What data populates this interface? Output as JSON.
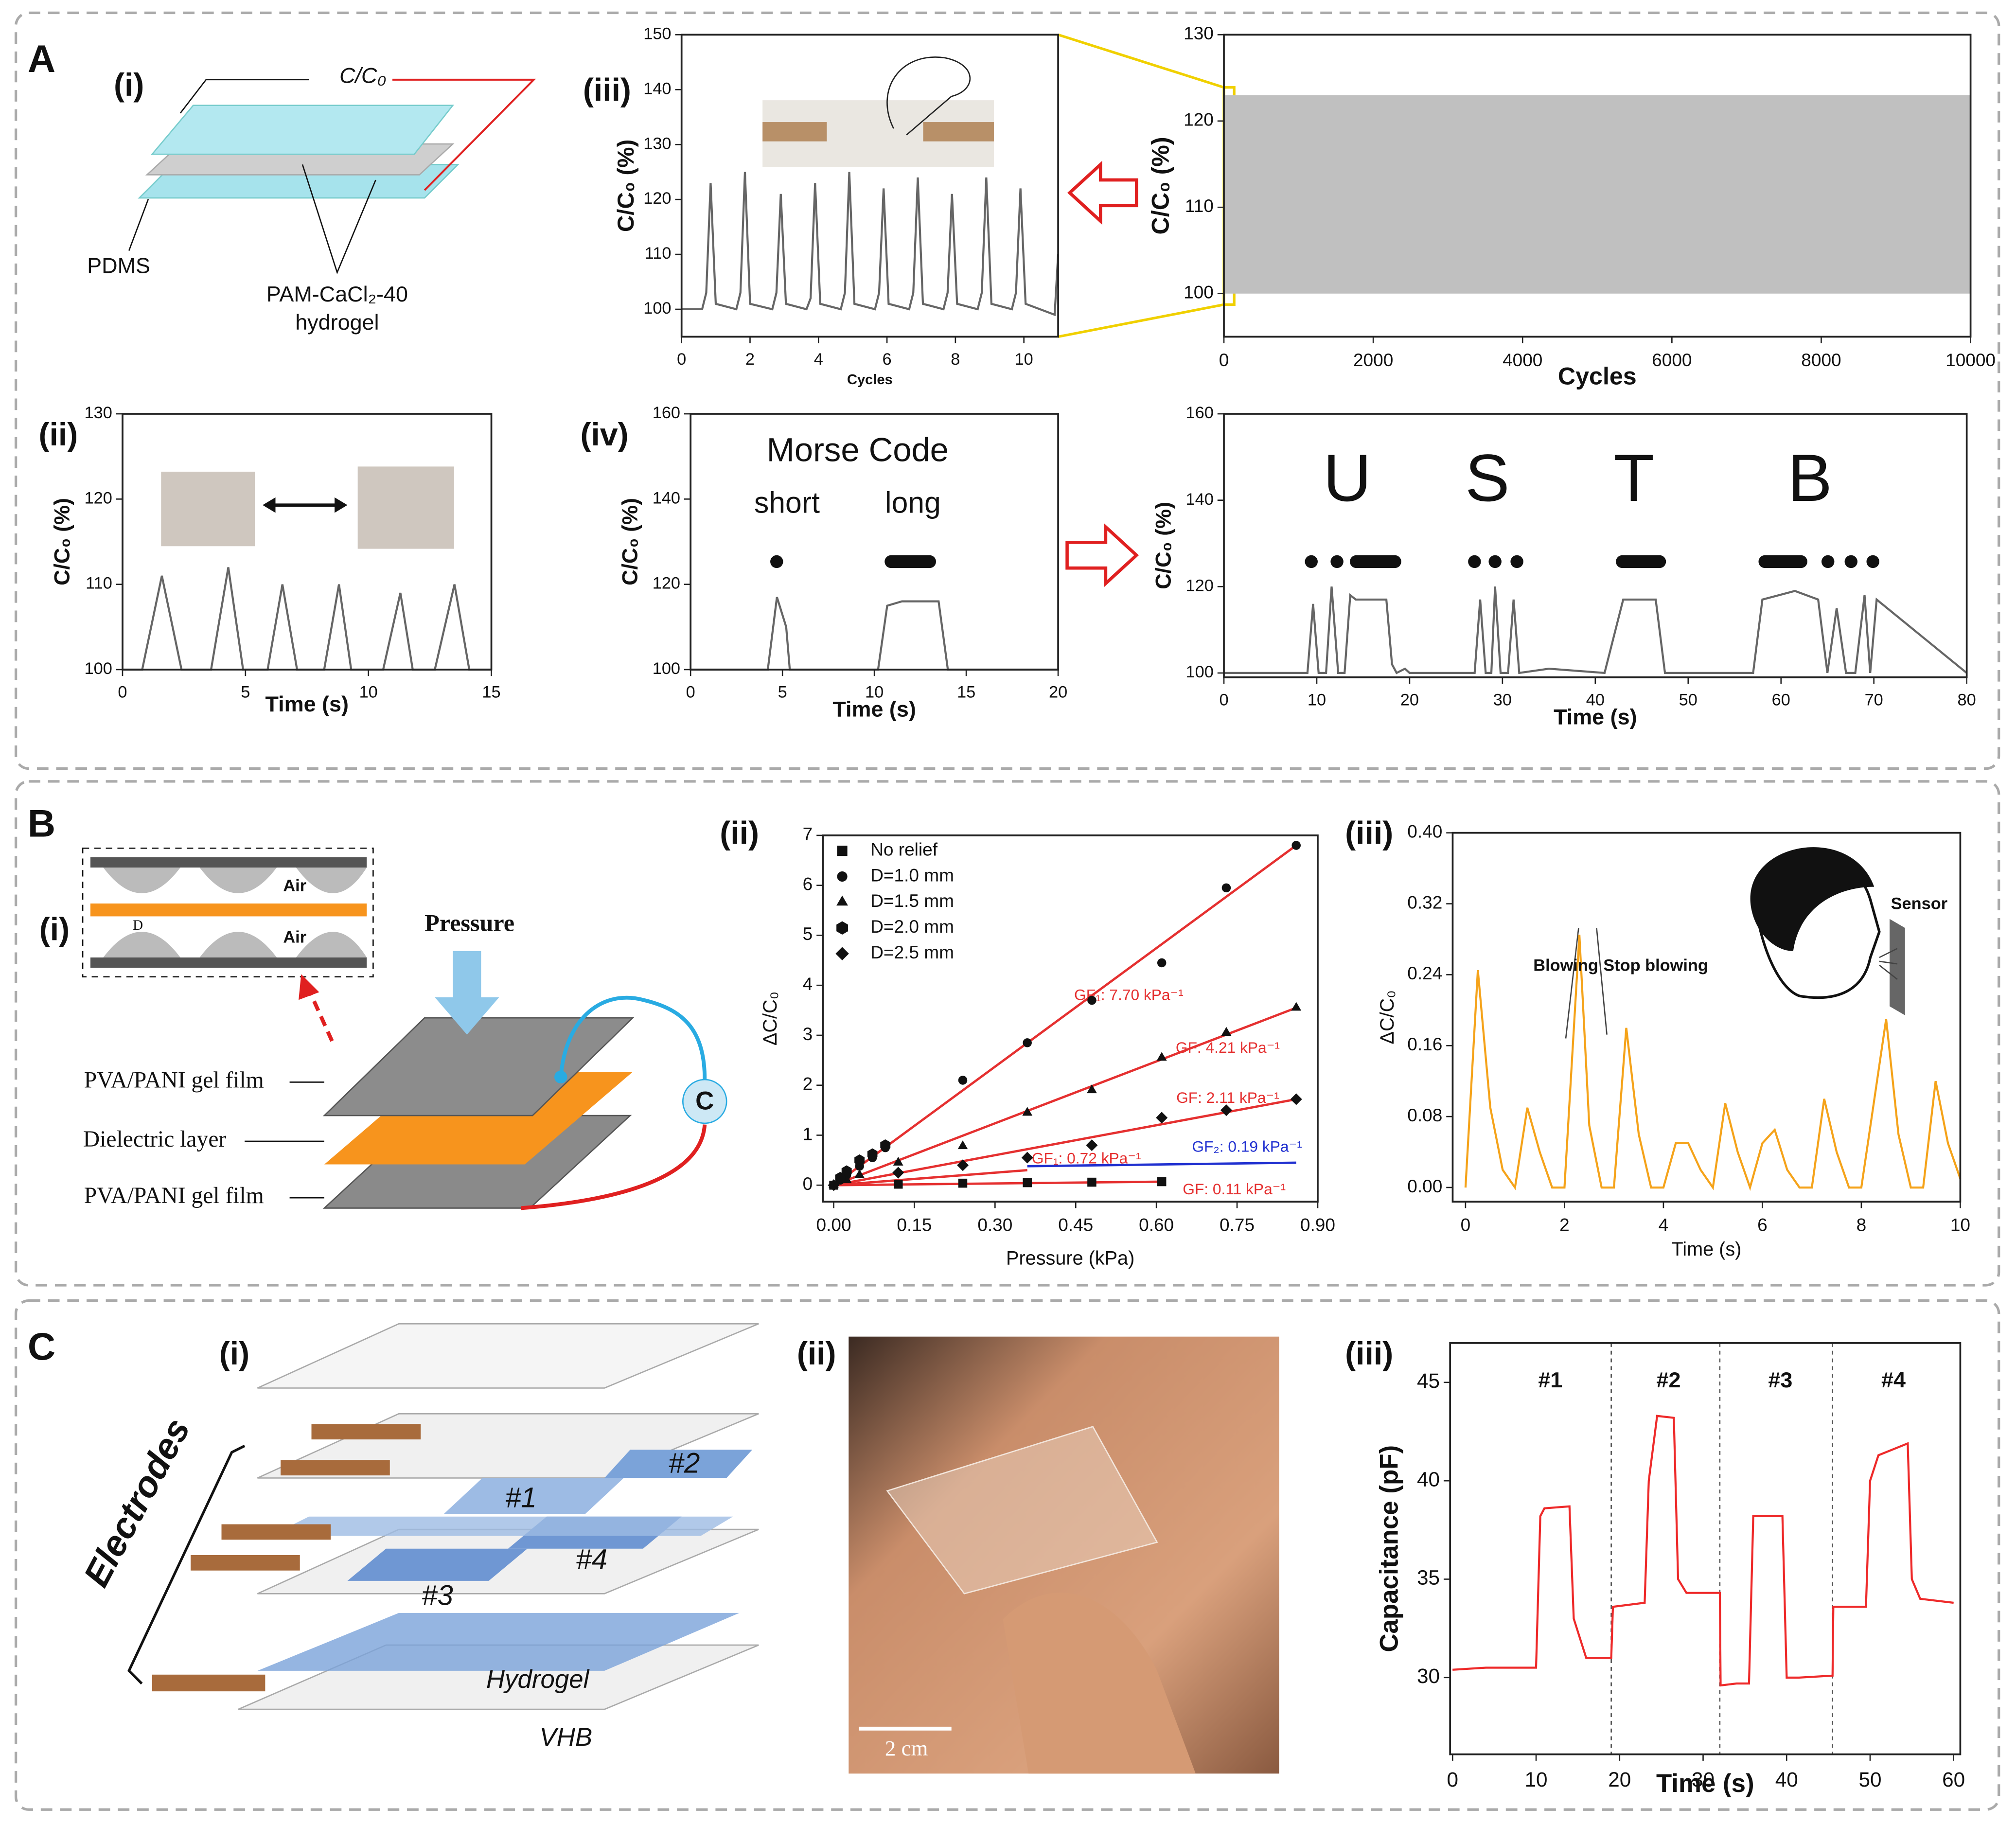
{
  "panel_labels": [
    "A",
    "(i)",
    "(iii)",
    "(ii)",
    "(iv)",
    "B",
    "(i)",
    "(ii)",
    "(iii)",
    "C",
    "(i)",
    "(ii)",
    "(iii)"
  ],
  "a_i": [
    "C/C₀",
    "PDMS",
    "PAM-CaCl₂-40",
    "hydrogel"
  ],
  "a_iv_morse": [
    "Morse Code",
    "short",
    "long"
  ],
  "b_i": [
    "Pressure",
    "Air",
    "Air",
    "D",
    "PVA/PANI gel film",
    "Dielectric layer",
    "PVA/PANI gel film",
    "C"
  ],
  "c_i": [
    "Electrodes",
    "#1",
    "#2",
    "#3",
    "#4",
    "Hydrogel",
    "VHB"
  ],
  "c_ii": [
    "2 cm"
  ],
  "chart_data": [
    {
      "type": "line",
      "xlabel": "Cycles",
      "ylabel": "C/C₀ (%)",
      "xlim": [
        0,
        11
      ],
      "ylim": [
        95,
        150
      ],
      "xticks": [
        0,
        2,
        4,
        6,
        8,
        10
      ],
      "yticks": [
        100,
        110,
        120,
        130,
        140,
        150
      ],
      "series": [
        {
          "color": "#666666",
          "x": [
            0,
            0.6,
            0.72,
            0.85,
            1.0,
            1.6,
            1.72,
            1.85,
            2.0,
            2.65,
            2.77,
            2.9,
            3.05,
            3.65,
            3.77,
            3.9,
            4.05,
            4.65,
            4.77,
            4.9,
            5.05,
            5.65,
            5.77,
            5.9,
            6.05,
            6.65,
            6.77,
            6.9,
            7.05,
            7.65,
            7.77,
            7.9,
            8.05,
            8.65,
            8.77,
            8.9,
            9.05,
            9.65,
            9.77,
            9.9,
            10.05,
            10.9,
            11
          ],
          "values": [
            100,
            100,
            103,
            123,
            101,
            100,
            103,
            125,
            101,
            100,
            103,
            121,
            101,
            100,
            102,
            123,
            101,
            100,
            103,
            125,
            101,
            100,
            103,
            122,
            101,
            100,
            103,
            124,
            101,
            100,
            103,
            121,
            101,
            100,
            103,
            124,
            101,
            100,
            103,
            122,
            101,
            99,
            110
          ]
        }
      ]
    },
    {
      "type": "band",
      "xlabel": "Cycles",
      "ylabel": "C/C₀ (%)",
      "xlim": [
        0,
        10000
      ],
      "ylim": [
        95,
        130
      ],
      "xticks": [
        0,
        2000,
        4000,
        6000,
        8000,
        10000
      ],
      "yticks": [
        100,
        110,
        120,
        130
      ],
      "color": "#c0c0c0",
      "x": [
        0,
        10000
      ],
      "values": [
        123,
        123
      ],
      "lower": [
        100,
        100
      ]
    },
    {
      "type": "line",
      "xlabel": "Time (s)",
      "ylabel": "C/C₀ (%)",
      "xlim": [
        0,
        15
      ],
      "ylim": [
        100,
        130
      ],
      "xticks": [
        0,
        5,
        10,
        15
      ],
      "yticks": [
        100,
        110,
        120,
        130
      ],
      "series": [
        {
          "color": "#666666",
          "x": [
            0,
            0.8,
            1.6,
            2.4,
            3.2,
            3.6,
            4.3,
            4.9,
            5.6,
            5.9,
            6.5,
            7.1,
            8.2,
            8.8,
            9.3,
            10.6,
            11.3,
            11.8,
            12.7,
            13.5,
            14.1,
            15
          ],
          "values": [
            100,
            100,
            111,
            100,
            100,
            100,
            112,
            100,
            100,
            100,
            110,
            100,
            100,
            110,
            100,
            100,
            109,
            100,
            100,
            110,
            100,
            100
          ]
        }
      ]
    },
    {
      "type": "line",
      "xlabel": "Time (s)",
      "ylabel": "C/C₀ (%)",
      "xlim": [
        0,
        20
      ],
      "ylim": [
        100,
        160
      ],
      "xticks": [
        0,
        5,
        10,
        15,
        20
      ],
      "yticks": [
        100,
        120,
        140,
        160
      ],
      "series": [
        {
          "color": "#666666",
          "x": [
            0,
            4.2,
            4.7,
            5.2,
            5.4,
            10.2,
            10.7,
            11.5,
            13.5,
            14.0,
            20
          ],
          "values": [
            100,
            100,
            117,
            110,
            100,
            100,
            115,
            116,
            116,
            100,
            100
          ]
        }
      ]
    },
    {
      "type": "line",
      "xlabel": "Time (s)",
      "ylabel": "C/C₀ (%)",
      "xlim": [
        0,
        80
      ],
      "ylim": [
        99,
        160
      ],
      "xticks": [
        0,
        10,
        20,
        30,
        40,
        50,
        60,
        70,
        80
      ],
      "yticks": [
        100,
        120,
        140,
        160
      ],
      "annotations": [
        "U",
        "S",
        "T",
        "B"
      ],
      "series": [
        {
          "color": "#666666",
          "x": [
            0,
            9,
            9.6,
            10.2,
            11,
            11.6,
            12.3,
            13,
            13.6,
            14.2,
            17.5,
            18.1,
            18.6,
            19.5,
            20,
            27,
            27.6,
            28.2,
            28.8,
            29.2,
            29.8,
            30.6,
            31.2,
            31.8,
            35,
            41,
            43,
            46.5,
            47.5,
            57,
            58,
            61.5,
            64,
            65,
            66,
            67,
            68,
            69,
            69.6,
            70.3,
            80
          ],
          "values": [
            100,
            100,
            116,
            100,
            100,
            120,
            100,
            100,
            118,
            117,
            117,
            102,
            100,
            101,
            100,
            100,
            117,
            100,
            100,
            120,
            100,
            100,
            117,
            100,
            101,
            100,
            117,
            117,
            100,
            100,
            117,
            119,
            117,
            100,
            115,
            100,
            100,
            118,
            100,
            117,
            100
          ]
        }
      ]
    },
    {
      "type": "scatter",
      "xlabel": "Pressure (kPa)",
      "ylabel": "ΔC/C₀",
      "xlim": [
        -0.02,
        0.9
      ],
      "ylim": [
        -0.33,
        7
      ],
      "xticks": [
        {
          "value": 0,
          "label": "0.00"
        },
        0.15,
        {
          "value": 0.3,
          "label": "0.30"
        },
        0.45,
        {
          "value": 0.6,
          "label": "0.60"
        },
        0.75,
        {
          "value": 0.9,
          "label": "0.90"
        }
      ],
      "yticks": [
        0,
        1,
        2,
        3,
        4,
        5,
        6,
        7
      ],
      "legend": "upper left",
      "series": [
        {
          "name": "No relief",
          "marker": "square",
          "color": "#111111",
          "x": [
            0,
            0.12,
            0.24,
            0.36,
            0.48,
            0.61
          ],
          "values": [
            0,
            0.02,
            0.04,
            0.05,
            0.06,
            0.07
          ]
        },
        {
          "name": "D=1.0 mm",
          "marker": "circle",
          "color": "#111111",
          "x": [
            0,
            0.012,
            0.024,
            0.048,
            0.072,
            0.096,
            0.24,
            0.36,
            0.48,
            0.61,
            0.73,
            0.86
          ],
          "values": [
            0,
            0.1,
            0.2,
            0.38,
            0.55,
            0.75,
            2.1,
            2.85,
            3.7,
            4.45,
            5.95,
            6.8
          ]
        },
        {
          "name": "D=1.5 mm",
          "marker": "triangle",
          "color": "#111111",
          "x": [
            0,
            0.024,
            0.048,
            0.12,
            0.24,
            0.36,
            0.48,
            0.61,
            0.73,
            0.86
          ],
          "values": [
            0,
            0.1,
            0.2,
            0.45,
            0.78,
            1.45,
            1.9,
            2.55,
            3.05,
            3.55
          ]
        },
        {
          "name": "D=2.0 mm",
          "marker": "hexagon",
          "color": "#111111",
          "x": [
            0.012,
            0.024,
            0.048,
            0.072,
            0.096
          ],
          "values": [
            0.15,
            0.28,
            0.5,
            0.62,
            0.8
          ]
        },
        {
          "name": "D=2.5 mm",
          "marker": "diamond",
          "color": "#111111",
          "x": [
            0,
            0.12,
            0.24,
            0.36,
            0.48,
            0.61,
            0.73,
            0.86
          ],
          "values": [
            0,
            0.25,
            0.4,
            0.55,
            0.8,
            1.35,
            1.5,
            1.72
          ]
        }
      ],
      "fits": [
        {
          "x": [
            0,
            0.86
          ],
          "values": [
            0,
            6.8
          ],
          "color": "#e53030",
          "label": "GF₁: 7.70 kPa⁻¹"
        },
        {
          "x": [
            0,
            0.86
          ],
          "values": [
            0,
            3.55
          ],
          "color": "#e53030",
          "label": "GF: 4.21 kPa⁻¹"
        },
        {
          "x": [
            0,
            0.86
          ],
          "values": [
            0,
            1.72
          ],
          "color": "#e53030",
          "label": "GF: 2.11 kPa⁻¹"
        },
        {
          "x": [
            0,
            0.36
          ],
          "values": [
            0,
            0.3
          ],
          "color": "#e53030",
          "label": "GF₁: 0.72 kPa⁻¹"
        },
        {
          "x": [
            0.36,
            0.86
          ],
          "values": [
            0.38,
            0.45
          ],
          "color": "#2030d0",
          "label": "GF₂: 0.19 kPa⁻¹"
        },
        {
          "x": [
            0,
            0.61
          ],
          "values": [
            0,
            0.07
          ],
          "color": "#e53030",
          "label": "GF: 0.11 kPa⁻¹"
        }
      ]
    },
    {
      "type": "line",
      "xlabel": "Time (s)",
      "ylabel": "ΔC/C₀",
      "xlim": [
        -0.26,
        10
      ],
      "ylim": [
        -0.016,
        0.4
      ],
      "xticks": [
        0,
        2,
        4,
        6,
        8,
        10
      ],
      "yticks": [
        {
          "value": 0,
          "label": "0.00"
        },
        0.08,
        0.16,
        0.24,
        0.32,
        {
          "value": 0.4,
          "label": "0.40"
        }
      ],
      "annotations": [
        "Blowing",
        "Stop blowing",
        "Sensor"
      ],
      "series": [
        {
          "color": "#f5a31a",
          "x": [
            0,
            0.25,
            0.5,
            0.75,
            1,
            1.25,
            1.5,
            1.75,
            2,
            2.3,
            2.5,
            2.75,
            3,
            3.25,
            3.5,
            3.75,
            4,
            4.25,
            4.5,
            4.75,
            5,
            5.25,
            5.5,
            5.75,
            6,
            6.25,
            6.5,
            6.75,
            7,
            7.25,
            7.5,
            7.75,
            8,
            8.5,
            8.75,
            9,
            9.25,
            9.5,
            9.75,
            10
          ],
          "values": [
            0,
            0.245,
            0.09,
            0.02,
            0,
            0.09,
            0.04,
            0,
            0,
            0.285,
            0.07,
            0,
            0,
            0.18,
            0.06,
            0,
            0,
            0.05,
            0.05,
            0.02,
            0,
            0.095,
            0.04,
            0,
            0.05,
            0.065,
            0.02,
            0,
            0,
            0.1,
            0.04,
            0,
            0,
            0.19,
            0.06,
            0,
            0,
            0.12,
            0.05,
            0.01
          ]
        }
      ]
    },
    {
      "type": "line",
      "xlabel": "Time (s)",
      "ylabel": "Capacitance (pF)",
      "xlim": [
        -0.3,
        60.8
      ],
      "ylim": [
        26.1,
        47
      ],
      "xticks": [
        0,
        10,
        20,
        30,
        40,
        50,
        60
      ],
      "yticks": [
        30,
        35,
        40,
        45
      ],
      "annotations": [
        "#1",
        "#2",
        "#3",
        "#4"
      ],
      "vlines": [
        19,
        32,
        45.5
      ],
      "series": [
        {
          "color": "#ee2a2a",
          "x": [
            0,
            4,
            10,
            10.5,
            11,
            14,
            14.5,
            16,
            18,
            19,
            19.2,
            23,
            23.5,
            24.5,
            26.5,
            27,
            28,
            32,
            32.1,
            34,
            35.5,
            36,
            39.5,
            40,
            41.5,
            45.5,
            45.6,
            49.5,
            50,
            51,
            54.5,
            55,
            56,
            60
          ],
          "values": [
            30.4,
            30.5,
            30.5,
            38.2,
            38.6,
            38.7,
            33,
            31,
            31,
            31,
            33.6,
            33.8,
            40,
            43.3,
            43.2,
            35,
            34.3,
            34.3,
            29.6,
            29.7,
            29.7,
            38.2,
            38.2,
            30,
            30,
            30.1,
            33.6,
            33.6,
            40,
            41.3,
            41.9,
            35,
            34,
            33.8
          ]
        }
      ]
    }
  ]
}
